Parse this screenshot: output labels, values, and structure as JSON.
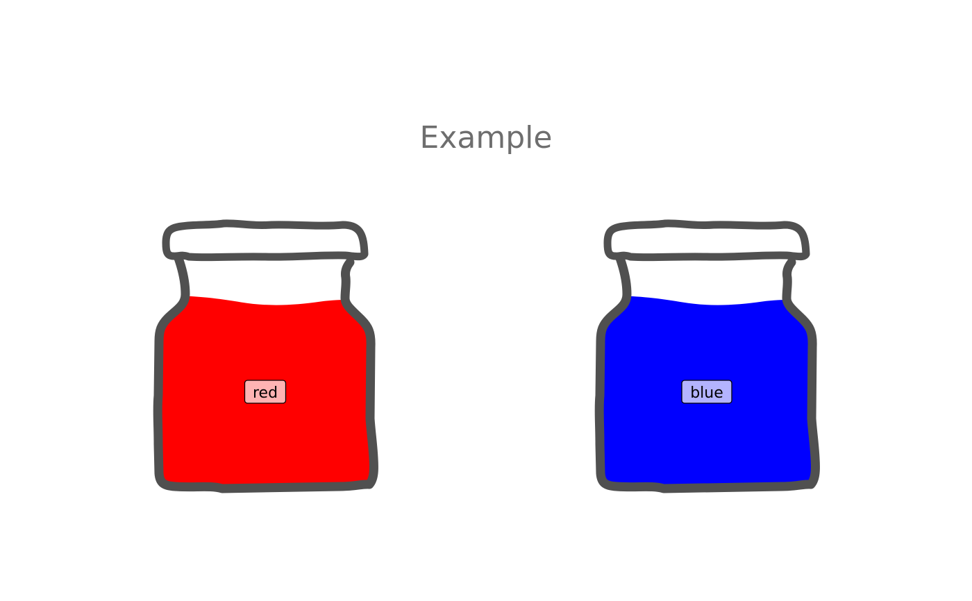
{
  "chart_data": {
    "type": "bar",
    "subtype": "liquid-fill-jar",
    "title": "Example",
    "grid": false,
    "legend": "none",
    "ylim": [
      0,
      1
    ],
    "series": [
      {
        "name": "red",
        "value": 0.85,
        "color": "#ff0000",
        "label_bg": "#ffb3b3"
      },
      {
        "name": "blue",
        "value": 0.85,
        "color": "#0000ff",
        "label_bg": "#b3b3ff"
      }
    ],
    "outline_color": "#505050"
  }
}
